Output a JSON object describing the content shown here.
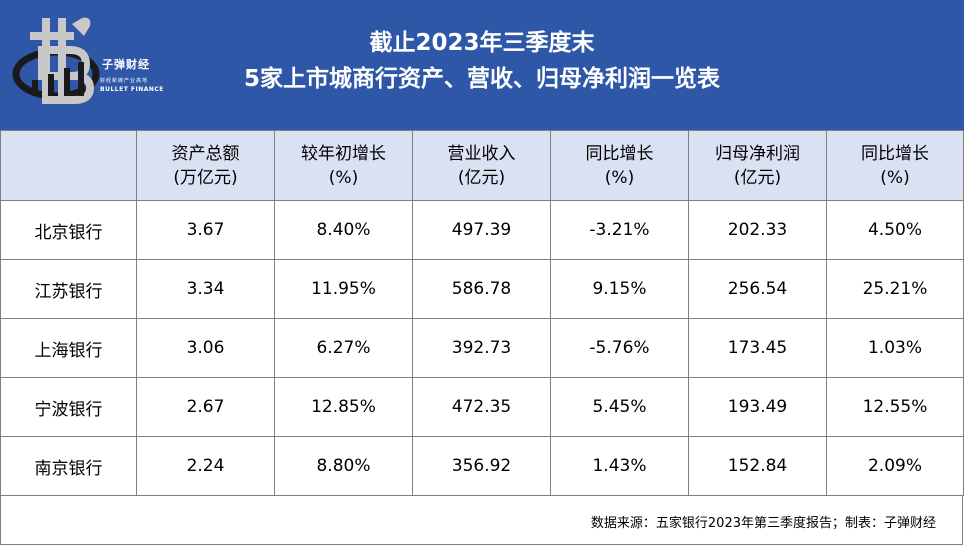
{
  "header": {
    "title_line1": "截止2023年三季度末",
    "title_line2": "5家上市城商行资产、营收、归母净利润一览表"
  },
  "logo": {
    "name_cn": "子弹财经",
    "tagline": "财经新媒产业高地",
    "name_en": "BULLET FINANCE",
    "colors": {
      "silver": "#c8c8c8",
      "dark": "#1a1a1a"
    }
  },
  "table": {
    "columns": [
      {
        "line1": "",
        "line2": ""
      },
      {
        "line1": "资产总额",
        "line2": "(万亿元)"
      },
      {
        "line1": "较年初增长",
        "line2": "(%)"
      },
      {
        "line1": "营业收入",
        "line2": "(亿元)"
      },
      {
        "line1": "同比增长",
        "line2": "(%)"
      },
      {
        "line1": "归母净利润",
        "line2": "(亿元)"
      },
      {
        "line1": "同比增长",
        "line2": "(%)"
      }
    ],
    "rows": [
      [
        "北京银行",
        "3.67",
        "8.40%",
        "497.39",
        "-3.21%",
        "202.33",
        "4.50%"
      ],
      [
        "江苏银行",
        "3.34",
        "11.95%",
        "586.78",
        "9.15%",
        "256.54",
        "25.21%"
      ],
      [
        "上海银行",
        "3.06",
        "6.27%",
        "392.73",
        "-5.76%",
        "173.45",
        "1.03%"
      ],
      [
        "宁波银行",
        "2.67",
        "12.85%",
        "472.35",
        "5.45%",
        "193.49",
        "12.55%"
      ],
      [
        "南京银行",
        "2.24",
        "8.80%",
        "356.92",
        "1.43%",
        "152.84",
        "2.09%"
      ]
    ]
  },
  "footer": {
    "source": "数据来源：五家银行2023年第三季度报告；制表：子弹财经"
  },
  "colors": {
    "header_bg": "#2f57a8",
    "table_header_bg": "#d9e1f2",
    "border": "#7f7f7f"
  }
}
